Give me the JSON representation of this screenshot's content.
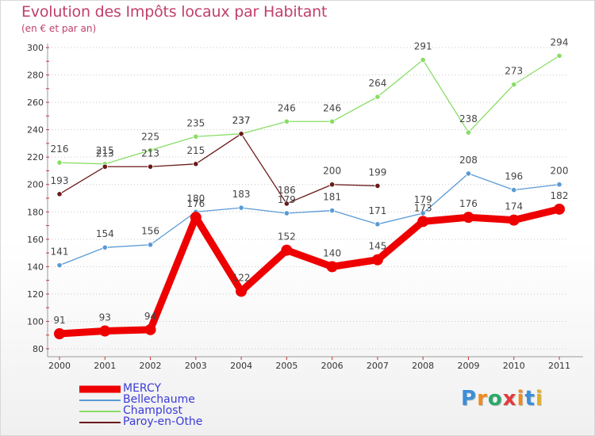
{
  "title": "Evolution des Impôts locaux par Habitant",
  "subtitle": "(en € et par an)",
  "logo": {
    "text": "Proxiti",
    "letters": [
      "P",
      "r",
      "o",
      "x",
      "i",
      "t",
      "i"
    ],
    "colors": [
      "#3b8ed8",
      "#f08a1c",
      "#2ba86b",
      "#e23b3b",
      "#f08a1c",
      "#3b8ed8",
      "#e0b020"
    ]
  },
  "chart_data": {
    "type": "line",
    "title": "Evolution des Impôts locaux par Habitant",
    "subtitle": "(en € et par an)",
    "xlabel": "",
    "ylabel": "",
    "categories": [
      "2000",
      "2001",
      "2002",
      "2003",
      "2004",
      "2005",
      "2006",
      "2007",
      "2008",
      "2009",
      "2010",
      "2011"
    ],
    "yticks": [
      "80",
      "100",
      "120",
      "140",
      "160",
      "180",
      "200",
      "220",
      "240",
      "260",
      "280",
      "300"
    ],
    "ylim": [
      80,
      300
    ],
    "grid": "horizontal dotted",
    "legend": "bottom-left",
    "series": [
      {
        "name": "MERCY",
        "color": "#ee0000",
        "emphasis": "thick",
        "values": [
          91,
          93,
          94,
          176,
          122,
          152,
          140,
          145,
          173,
          176,
          174,
          182
        ],
        "labels": [
          "91",
          "93",
          "94",
          "176",
          "122",
          "152",
          "140",
          "145",
          "173",
          "176",
          "174",
          "182"
        ]
      },
      {
        "name": "Bellechaume",
        "color": "#5a9ad4",
        "emphasis": "thin",
        "values": [
          141,
          154,
          156,
          180,
          183,
          179,
          181,
          171,
          179,
          208,
          196,
          200
        ],
        "labels": [
          "141",
          "154",
          "156",
          "180",
          "183",
          "179",
          "181",
          "171",
          "179",
          "208",
          "196",
          "200"
        ]
      },
      {
        "name": "Champlost",
        "color": "#88dd66",
        "emphasis": "thin",
        "values": [
          216,
          215,
          225,
          235,
          237,
          246,
          246,
          264,
          291,
          238,
          273,
          294
        ],
        "labels": [
          "216",
          "215",
          "225",
          "235",
          "237",
          "246",
          "246",
          "264",
          "291",
          "238",
          "273",
          "294"
        ]
      },
      {
        "name": "Paroy-en-Othe",
        "color": "#6b1a1a",
        "emphasis": "thin",
        "values": [
          193,
          213,
          213,
          215,
          237,
          186,
          200,
          199,
          null,
          null,
          null,
          null
        ],
        "labels": [
          "193",
          "213",
          "213",
          "215",
          "237",
          "186",
          "200",
          "199",
          null,
          null,
          null,
          null
        ]
      }
    ]
  }
}
